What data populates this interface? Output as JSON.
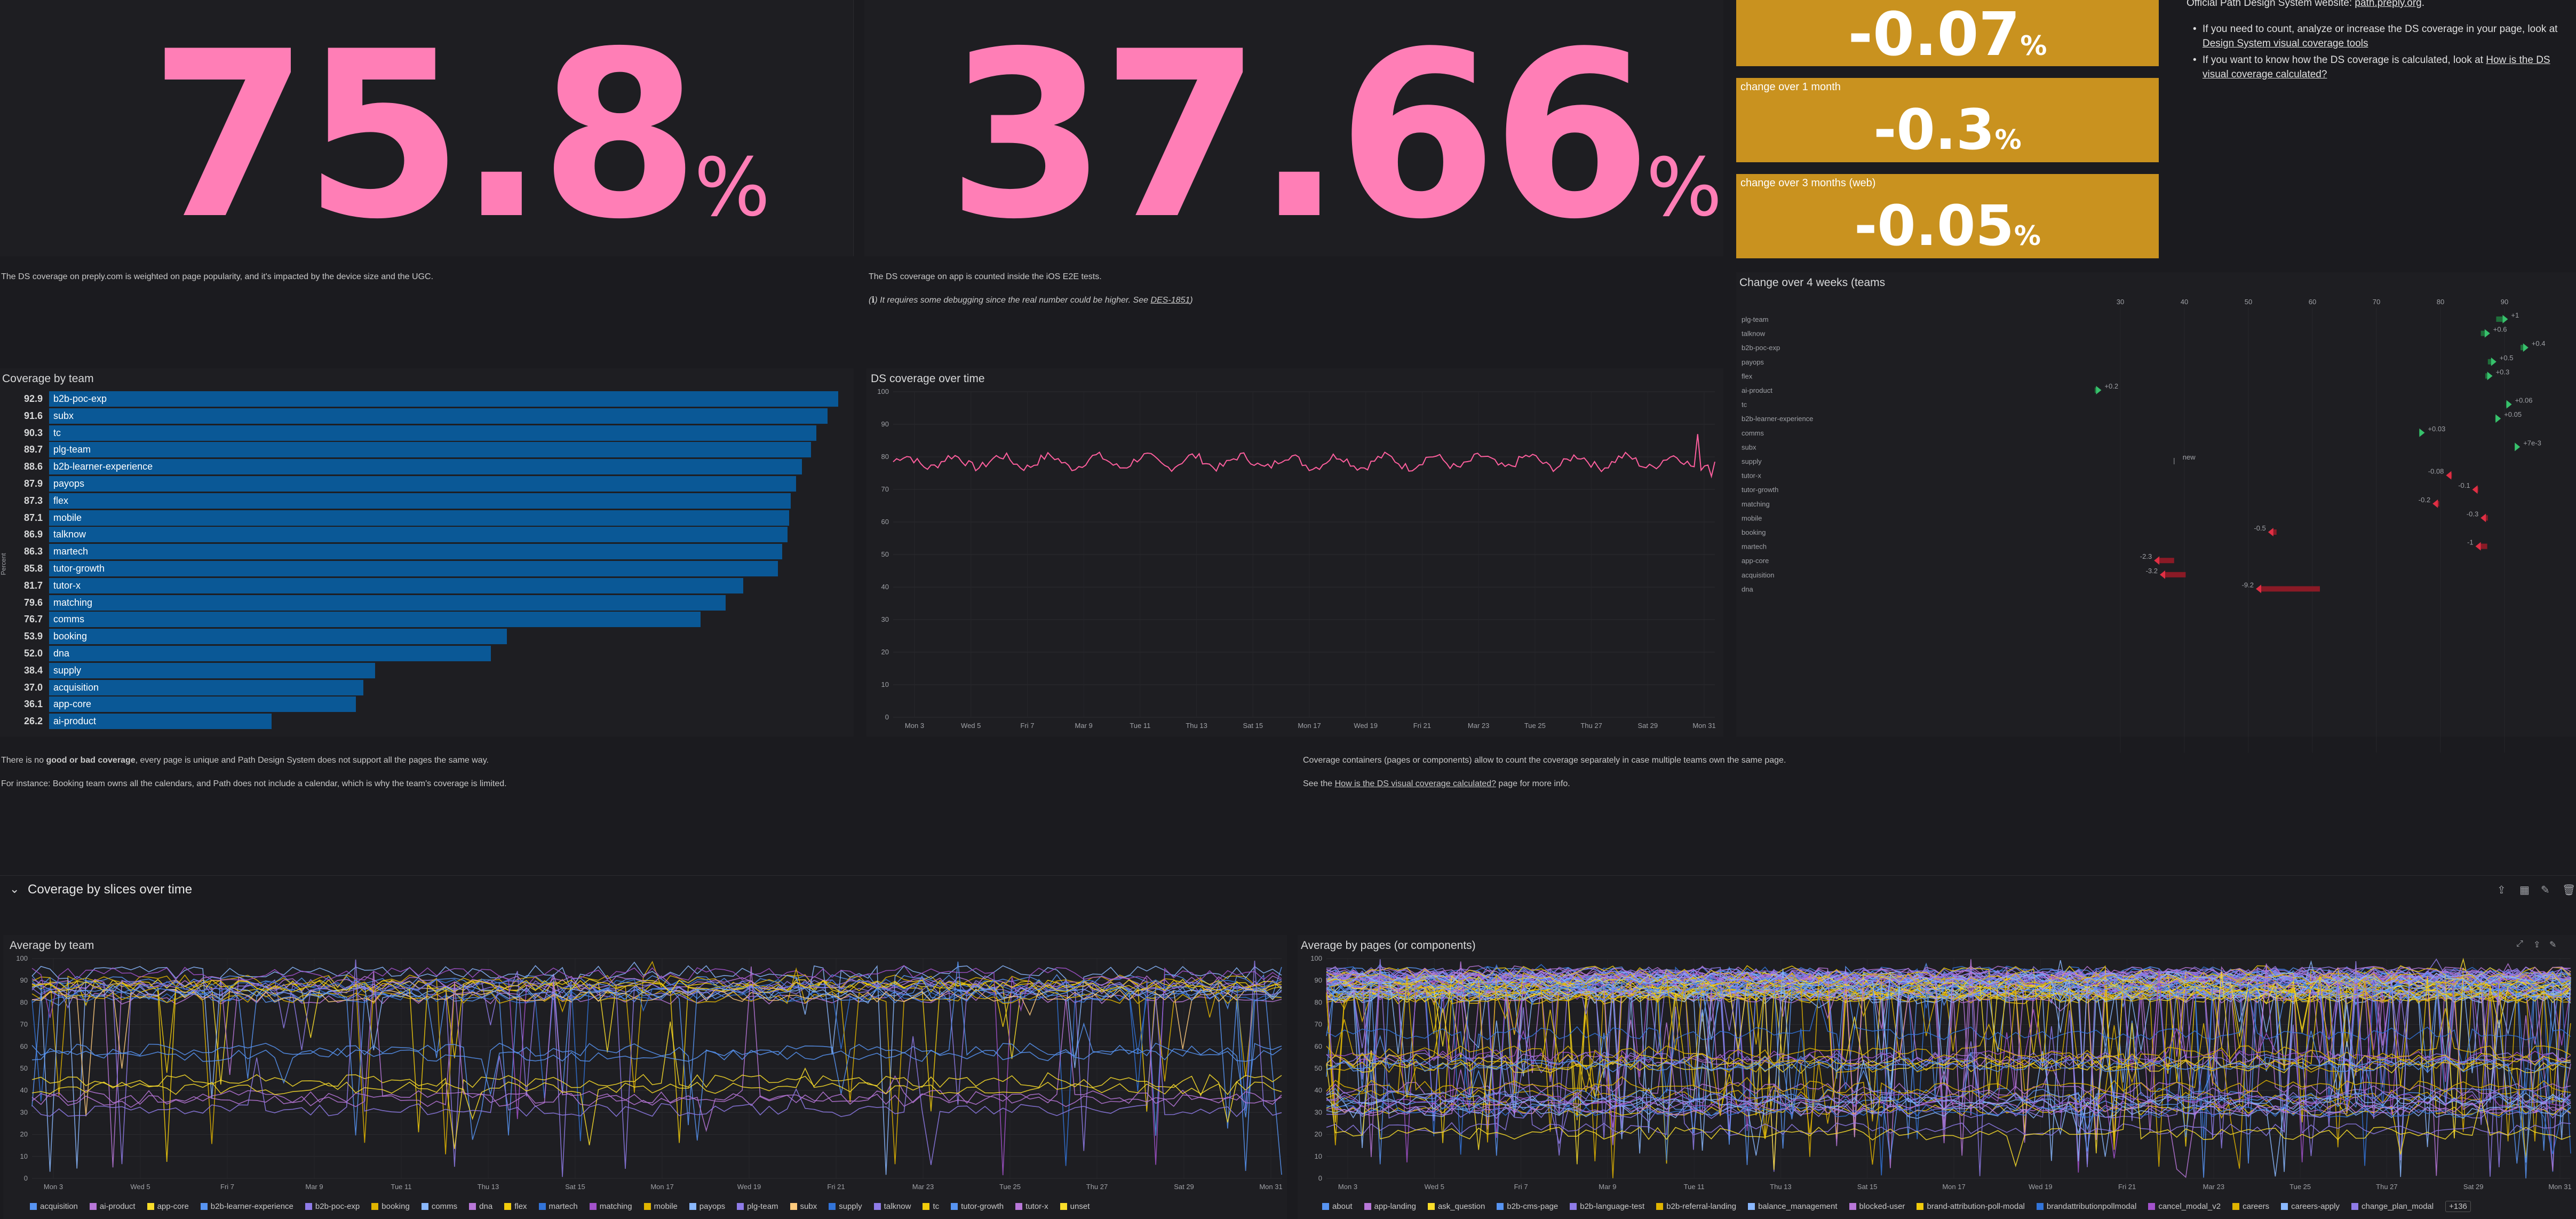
{
  "stats": {
    "web_value": "75.8",
    "app_value": "37.66",
    "unit": "%"
  },
  "changes": [
    {
      "label": "",
      "value": "-0.07"
    },
    {
      "label": "change over 1 month",
      "value": "-0.3"
    },
    {
      "label": "change over 3 months (web)",
      "value": "-0.05"
    }
  ],
  "info": {
    "site_line": "Official Path Design System website: ",
    "site_link": "path.preply.org",
    "bullet1_pre": "If you need to count, analyze or increase the DS coverage in your page, look at ",
    "bullet1_link": "Design System visual coverage tools",
    "bullet2_pre": "If you want to know how the DS coverage is calculated, look at ",
    "bullet2_link": "How is the DS visual coverage calculated?"
  },
  "notes": {
    "web": "The DS coverage on preply.com is weighted on page popularity, and it's impacted by the device size and the UGC.",
    "app": "The DS coverage on app is counted inside the iOS E2E tests.",
    "app_debug_pre": "(ℹ) It requires some debugging since the real number could be higher. See ",
    "app_debug_link": "DES-1851",
    "app_debug_post": ")",
    "good_bad_1": "There is no ",
    "good_bad_bold": "good or bad coverage",
    "good_bad_2": ", every page is unique and Path Design System does not support all the pages the same way.",
    "instance": "For instance: Booking team owns all the calendars, and Path does not include a calendar, which is why the team's coverage is limited.",
    "containers": "Coverage containers (pages or components) allow to count the coverage separately in case multiple teams own the same page.",
    "see_pre": "See the ",
    "see_link": "How is the DS visual coverage calculated?",
    "see_post": " page for more info."
  },
  "coverage_by_team": {
    "title": "Coverage by team",
    "ylabel": "Percent",
    "rows": [
      {
        "team": "b2b-poc-exp",
        "value": 92.9
      },
      {
        "team": "subx",
        "value": 91.6
      },
      {
        "team": "tc",
        "value": 90.3
      },
      {
        "team": "plg-team",
        "value": 89.7
      },
      {
        "team": "b2b-learner-experience",
        "value": 88.6
      },
      {
        "team": "payops",
        "value": 87.9
      },
      {
        "team": "flex",
        "value": 87.3
      },
      {
        "team": "mobile",
        "value": 87.1
      },
      {
        "team": "talknow",
        "value": 86.9
      },
      {
        "team": "martech",
        "value": 86.3
      },
      {
        "team": "tutor-growth",
        "value": 85.8
      },
      {
        "team": "tutor-x",
        "value": 81.7
      },
      {
        "team": "matching",
        "value": 79.6
      },
      {
        "team": "comms",
        "value": 76.7
      },
      {
        "team": "booking",
        "value": 53.9
      },
      {
        "team": "dna",
        "value": 52.0
      },
      {
        "team": "supply",
        "value": 38.4
      },
      {
        "team": "acquisition",
        "value": 37.0
      },
      {
        "team": "app-core",
        "value": 36.1
      },
      {
        "team": "ai-product",
        "value": 26.2
      }
    ]
  },
  "ds_over_time": {
    "title": "DS coverage over time",
    "yticks": [
      "100",
      "90",
      "80",
      "70",
      "60",
      "50",
      "40",
      "30",
      "20",
      "10",
      "0"
    ],
    "xticks": [
      "Mon 3",
      "Wed 5",
      "Fri 7",
      "Mar 9",
      "Tue 11",
      "Thu 13",
      "Sat 15",
      "Mon 17",
      "Wed 19",
      "Fri 21",
      "Mar 23",
      "Tue 25",
      "Thu 27",
      "Sat 29",
      "Mon 31"
    ]
  },
  "change_4w": {
    "title": "Change over 4 weeks (teams",
    "xticks": [
      "30",
      "40",
      "50",
      "60",
      "70",
      "80",
      "90"
    ],
    "rows": [
      {
        "team": "plg-team",
        "label": "+1"
      },
      {
        "team": "talknow",
        "label": "+0.6"
      },
      {
        "team": "b2b-poc-exp",
        "label": "+0.4"
      },
      {
        "team": "payops",
        "label": "+0.5"
      },
      {
        "team": "flex",
        "label": "+0.3"
      },
      {
        "team": "ai-product",
        "label": "+0.2"
      },
      {
        "team": "tc",
        "label": "+0.06"
      },
      {
        "team": "b2b-learner-experience",
        "label": "+0.05"
      },
      {
        "team": "comms",
        "label": "+0.03"
      },
      {
        "team": "subx",
        "label": "+7e-3"
      },
      {
        "team": "supply",
        "label": "new"
      },
      {
        "team": "tutor-x",
        "label": "-0.08"
      },
      {
        "team": "tutor-growth",
        "label": "-0.1"
      },
      {
        "team": "matching",
        "label": "-0.2"
      },
      {
        "team": "mobile",
        "label": "-0.3"
      },
      {
        "team": "booking",
        "label": "-0.5"
      },
      {
        "team": "martech",
        "label": "-1"
      },
      {
        "team": "app-core",
        "label": "-2.3"
      },
      {
        "team": "acquisition",
        "label": "-3.2"
      },
      {
        "team": "dna",
        "label": "-9.2"
      }
    ]
  },
  "section": {
    "title": "Coverage by slices over time"
  },
  "avg_team": {
    "title": "Average by team",
    "yticks": [
      "100",
      "90",
      "80",
      "70",
      "60",
      "50",
      "40",
      "30",
      "20",
      "10",
      "0"
    ],
    "xticks": [
      "Mon 3",
      "Wed 5",
      "Fri 7",
      "Mar 9",
      "Tue 11",
      "Thu 13",
      "Sat 15",
      "Mon 17",
      "Wed 19",
      "Fri 21",
      "Mar 23",
      "Tue 25",
      "Thu 27",
      "Sat 29",
      "Mon 31"
    ],
    "legend": [
      {
        "name": "acquisition",
        "color": "#5794f2"
      },
      {
        "name": "ai-product",
        "color": "#b877d9"
      },
      {
        "name": "app-core",
        "color": "#fade2a"
      },
      {
        "name": "b2b-learner-experience",
        "color": "#5794f2"
      },
      {
        "name": "b2b-poc-exp",
        "color": "#8f7be8"
      },
      {
        "name": "booking",
        "color": "#e0b400"
      },
      {
        "name": "comms",
        "color": "#8ab8ff"
      },
      {
        "name": "dna",
        "color": "#b877d9"
      },
      {
        "name": "flex",
        "color": "#f2cc0c"
      },
      {
        "name": "martech",
        "color": "#3274d9"
      },
      {
        "name": "matching",
        "color": "#a352cc"
      },
      {
        "name": "mobile",
        "color": "#e0b400"
      },
      {
        "name": "payops",
        "color": "#8ab8ff"
      },
      {
        "name": "plg-team",
        "color": "#8f7be8"
      },
      {
        "name": "subx",
        "color": "#ffcb7d"
      },
      {
        "name": "supply",
        "color": "#3274d9"
      },
      {
        "name": "talknow",
        "color": "#8f7be8"
      },
      {
        "name": "tc",
        "color": "#f2cc0c"
      },
      {
        "name": "tutor-growth",
        "color": "#5794f2"
      },
      {
        "name": "tutor-x",
        "color": "#b877d9"
      },
      {
        "name": "unset",
        "color": "#fade2a"
      }
    ]
  },
  "avg_pages": {
    "title": "Average by pages (or components)",
    "yticks": [
      "100",
      "90",
      "80",
      "70",
      "60",
      "50",
      "40",
      "30",
      "20",
      "10",
      "0"
    ],
    "xticks": [
      "Mon 3",
      "Wed 5",
      "Fri 7",
      "Mar 9",
      "Tue 11",
      "Thu 13",
      "Sat 15",
      "Mon 17",
      "Wed 19",
      "Fri 21",
      "Mar 23",
      "Tue 25",
      "Thu 27",
      "Sat 29",
      "Mon 31"
    ],
    "legend": [
      {
        "name": "about",
        "color": "#5794f2"
      },
      {
        "name": "app-landing",
        "color": "#b877d9"
      },
      {
        "name": "ask_question",
        "color": "#fade2a"
      },
      {
        "name": "b2b-cms-page",
        "color": "#5794f2"
      },
      {
        "name": "b2b-language-test",
        "color": "#8f7be8"
      },
      {
        "name": "b2b-referral-landing",
        "color": "#e0b400"
      },
      {
        "name": "balance_management",
        "color": "#8ab8ff"
      },
      {
        "name": "blocked-user",
        "color": "#b877d9"
      },
      {
        "name": "brand-attribution-poll-modal",
        "color": "#f2cc0c"
      },
      {
        "name": "brandattributionpollmodal",
        "color": "#3274d9"
      },
      {
        "name": "cancel_modal_v2",
        "color": "#a352cc"
      },
      {
        "name": "careers",
        "color": "#e0b400"
      },
      {
        "name": "careers-apply",
        "color": "#8ab8ff"
      },
      {
        "name": "change_plan_modal",
        "color": "#8f7be8"
      }
    ],
    "more": "+136"
  }
}
